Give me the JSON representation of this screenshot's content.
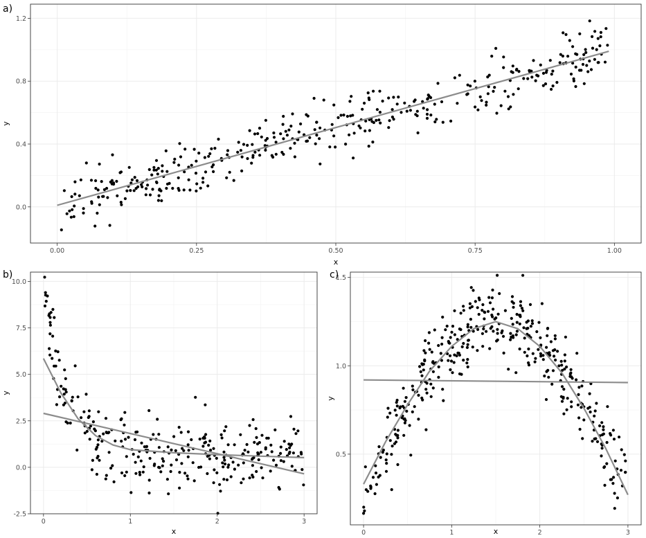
{
  "chart_data": [
    {
      "panel_label": "a)",
      "type": "scatter",
      "xlabel": "x",
      "ylabel": "y",
      "xlim": [
        -0.048,
        1.048
      ],
      "ylim": [
        -0.23,
        1.29
      ],
      "xticks": [
        0.0,
        0.25,
        0.5,
        0.75,
        1.0
      ],
      "xtick_labels": [
        "0.00",
        "0.25",
        "0.50",
        "0.75",
        "1.00"
      ],
      "yticks": [
        0.0,
        0.4,
        0.8,
        1.2
      ],
      "ytick_labels": [
        "0.0",
        "0.4",
        "0.8",
        "1.2"
      ],
      "grid": true,
      "n_points": 400,
      "points_relation": "y ≈ x + noise, x in [0, 1]",
      "fits": [
        {
          "kind": "linear",
          "x": [
            0.0,
            0.99
          ],
          "y": [
            0.01,
            0.99
          ],
          "color": "#8c8c8c"
        }
      ]
    },
    {
      "panel_label": "b)",
      "type": "scatter",
      "xlabel": "x",
      "ylabel": "y",
      "xlim": [
        -0.15,
        3.15
      ],
      "ylim": [
        -2.5,
        10.5
      ],
      "xticks": [
        0,
        1,
        2,
        3
      ],
      "xtick_labels": [
        "0",
        "1",
        "2",
        "3"
      ],
      "yticks": [
        -2.5,
        0.0,
        2.5,
        5.0,
        7.5,
        10.0
      ],
      "ytick_labels": [
        "-2.5",
        "0.0",
        "2.5",
        "5.0",
        "7.5",
        "10.0"
      ],
      "grid": true,
      "n_points": 300,
      "points_relation": "y ≈ decaying curve + noise, x in [0, 3]",
      "fits": [
        {
          "kind": "linear",
          "x": [
            0.0,
            3.0
          ],
          "y": [
            2.9,
            -0.35
          ],
          "color": "#8c8c8c"
        },
        {
          "kind": "piecewise",
          "x": [
            0.0,
            0.2,
            0.4,
            0.6,
            0.8,
            1.0,
            1.5,
            2.0,
            2.5,
            3.0
          ],
          "y": [
            5.85,
            4.0,
            2.6,
            1.7,
            1.2,
            0.95,
            0.78,
            0.68,
            0.6,
            0.52
          ],
          "color": "#8c8c8c"
        }
      ]
    },
    {
      "panel_label": "c)",
      "type": "scatter",
      "xlabel": "x",
      "ylabel": "y",
      "xlim": [
        -0.15,
        3.15
      ],
      "ylim": [
        0.1,
        1.53
      ],
      "xticks": [
        0,
        1,
        2,
        3
      ],
      "xtick_labels": [
        "0",
        "1",
        "2",
        "3"
      ],
      "yticks": [
        0.5,
        1.0,
        1.5
      ],
      "ytick_labels": [
        "0.5",
        "1.0",
        "1.5"
      ],
      "grid": true,
      "n_points": 400,
      "points_relation": "y ≈ arch-shaped curve + noise, x in [0, 3]",
      "fits": [
        {
          "kind": "linear",
          "x": [
            0.0,
            3.0
          ],
          "y": [
            0.92,
            0.905
          ],
          "color": "#8c8c8c"
        },
        {
          "kind": "piecewise",
          "x": [
            0.0,
            0.25,
            0.5,
            0.75,
            1.0,
            1.25,
            1.5,
            1.75,
            2.0,
            2.25,
            2.5,
            2.75,
            3.0
          ],
          "y": [
            0.33,
            0.57,
            0.78,
            0.97,
            1.11,
            1.21,
            1.25,
            1.21,
            1.11,
            0.96,
            0.76,
            0.53,
            0.27
          ],
          "color": "#8c8c8c"
        }
      ]
    }
  ]
}
